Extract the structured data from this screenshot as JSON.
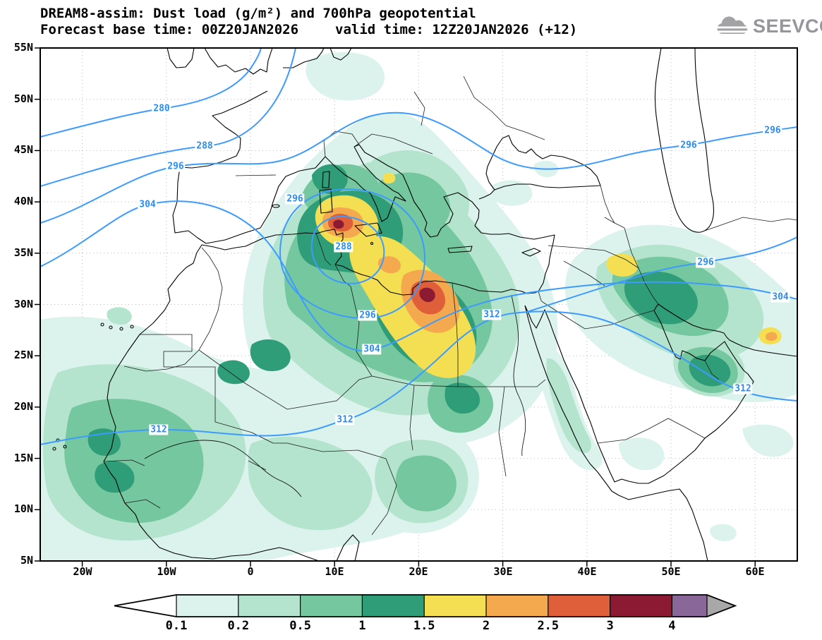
{
  "header": {
    "title": "DREAM8-assim: Dust load (g/m²) and 700hPa geopotential",
    "forecast_line": {
      "base": "Forecast base time: 00Z20JAN2026",
      "valid": "valid time: 12Z20JAN2026 (+12)"
    },
    "logo": "SEEVCCC"
  },
  "axes": {
    "lat_labels": [
      "55N",
      "50N",
      "45N",
      "40N",
      "35N",
      "30N",
      "25N",
      "20N",
      "15N",
      "10N",
      "5N"
    ],
    "lon_labels": [
      "20W",
      "10W",
      "0",
      "10E",
      "20E",
      "30E",
      "40E",
      "50E",
      "60E"
    ]
  },
  "contour_labels": [
    {
      "text": "280"
    },
    {
      "text": "288"
    },
    {
      "text": "296"
    },
    {
      "text": "304"
    },
    {
      "text": "296"
    },
    {
      "text": "288"
    },
    {
      "text": "296"
    },
    {
      "text": "304"
    },
    {
      "text": "312"
    },
    {
      "text": "312"
    },
    {
      "text": "312"
    },
    {
      "text": "296"
    },
    {
      "text": "296"
    },
    {
      "text": "296"
    },
    {
      "text": "304"
    },
    {
      "text": "312"
    }
  ],
  "colorbar": {
    "labels": [
      "0.1",
      "0.2",
      "0.5",
      "1",
      "1.5",
      "2",
      "2.5",
      "3",
      "4"
    ],
    "colors": [
      "#dcf2ec",
      "#b4e4cd",
      "#74c79e",
      "#2f9e78",
      "#f4df52",
      "#f5a94f",
      "#df5f3b",
      "#8c1a32",
      "#8a6799"
    ],
    "under_color": "#ffffff",
    "over_arrow_color": "#a8a8a8"
  },
  "chart_data": {
    "type": "heatmap",
    "title": "DREAM8-assim: Dust load (g/m²) and 700hPa geopotential",
    "forecast_base_time": "00Z20JAN2026",
    "valid_time": "12Z20JAN2026 (+12)",
    "lead_hours": 12,
    "model": "DREAM8-assim",
    "source_logo": "SEEVCCC",
    "fill_field": "Dust load",
    "fill_units": "g/m²",
    "fill_levels": [
      0.1,
      0.2,
      0.5,
      1,
      1.5,
      2,
      2.5,
      3,
      4
    ],
    "fill_colors": [
      "#ffffff",
      "#dcf2ec",
      "#b4e4cd",
      "#74c79e",
      "#2f9e78",
      "#f4df52",
      "#f5a94f",
      "#df5f3b",
      "#8c1a32",
      "#8a6799"
    ],
    "contour_field": "700hPa geopotential",
    "contour_labeled_values": [
      280,
      288,
      296,
      304,
      312
    ],
    "x_axis": {
      "label": "longitude",
      "ticks": [
        "20W",
        "10W",
        "0",
        "10E",
        "20E",
        "30E",
        "40E",
        "50E",
        "60E"
      ],
      "range_deg": [
        -25,
        65
      ]
    },
    "y_axis": {
      "label": "latitude",
      "ticks": [
        "5N",
        "10N",
        "15N",
        "20N",
        "25N",
        "30N",
        "35N",
        "40N",
        "45N",
        "50N",
        "55N"
      ],
      "range_deg": [
        5,
        55
      ]
    },
    "grid": "dotted",
    "legend_position": "bottom",
    "notable_features": [
      {
        "area": "NE Algeria / Tunisia (~36N, 8E)",
        "dust_load_g_m2": "2.5–3+ core"
      },
      {
        "area": "central Libya (~31N, 20E)",
        "dust_load_g_m2": "3+ core"
      },
      {
        "area": "broad Algeria–Libya–Sudan band",
        "dust_load_g_m2": "0.5–2"
      },
      {
        "area": "W Africa (Mauritania/Senegal ~16N, 14W)",
        "dust_load_g_m2": "1–1.5 patches"
      },
      {
        "area": "N Iraq (~34N, 42E)",
        "dust_load_g_m2": "1.5–2 spot"
      },
      {
        "area": "UAE/Oman & Strait of Hormuz",
        "dust_load_g_m2": "1–2"
      },
      {
        "area": "Italy / Adriatic / Balkans plume",
        "dust_load_g_m2": "0.2–1.5"
      },
      {
        "area": "closed 700hPa low (288 dam) over Tunisia/Sicily",
        "dust_load_g_m2": ""
      }
    ]
  }
}
